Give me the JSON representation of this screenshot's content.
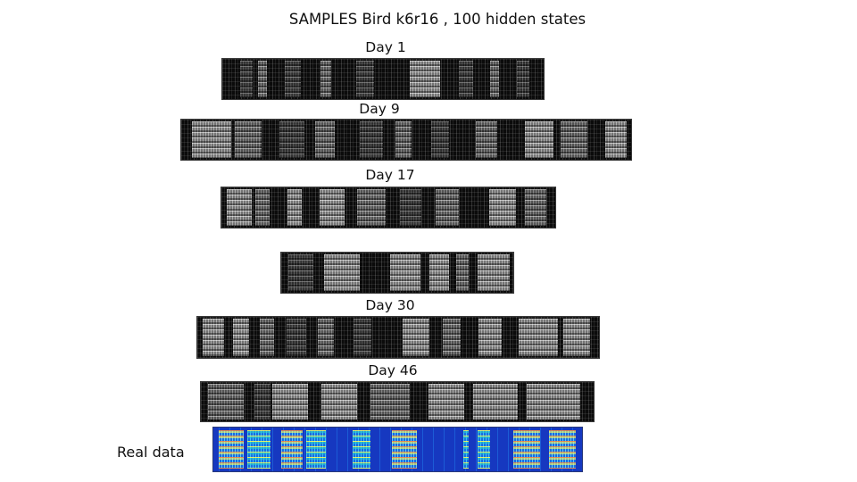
{
  "title": "SAMPLES Bird k6r16 , 100 hidden states",
  "day_labels": [
    "Day 1",
    "Day 9",
    "Day 17",
    "Day 30",
    "Day 46"
  ],
  "real_label": "Real data",
  "colors": {
    "background": "#ffffff",
    "spectrogram_background": "#0b0b0b",
    "real_data_background": "#1638c0"
  }
}
